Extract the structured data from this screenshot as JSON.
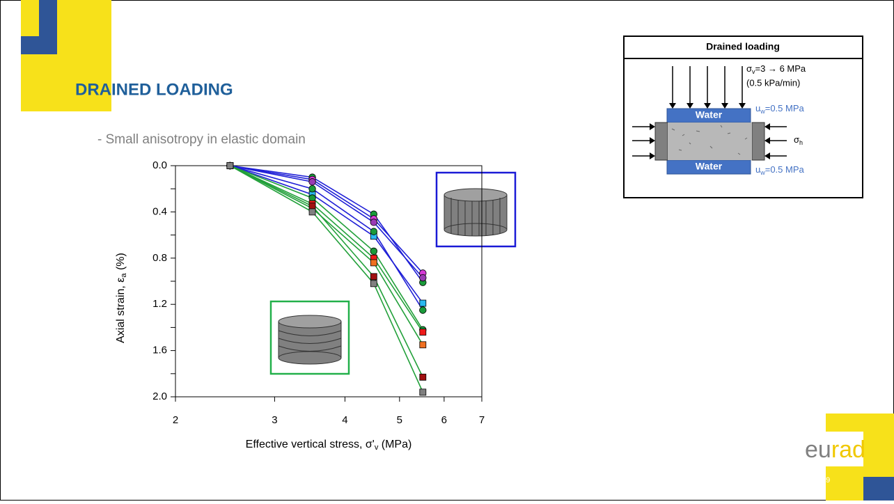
{
  "slide": {
    "title": "DRAINED LOADING",
    "bullet": "- Small anisotropy in elastic domain",
    "page_number": "49",
    "logo": [
      "eu",
      "rad"
    ]
  },
  "diagram": {
    "title": "Drained loading",
    "stress_v": [
      "σ",
      "v",
      "=3 → 6 MPa"
    ],
    "rate": "(0.5 kPa/min)",
    "water_top": "Water",
    "water_bottom": "Water",
    "pore_top": [
      "u",
      "w",
      "=0.5 MPa"
    ],
    "pore_bottom": [
      "u",
      "w",
      "=0.5 MPa"
    ],
    "stress_h": [
      "σ",
      "h"
    ]
  },
  "chart_data": {
    "type": "line",
    "x_label": [
      "Effective vertical stress, σ'",
      "v",
      " (MPa)"
    ],
    "y_label": [
      "Axial strain, ε",
      "a",
      " (%)"
    ],
    "x": [
      2.5,
      3.5,
      4.5,
      5.5
    ],
    "xlim": [
      2,
      7
    ],
    "xticks": [
      2,
      3,
      4,
      5,
      6,
      7
    ],
    "xlog": true,
    "ylim": [
      0,
      2
    ],
    "yinverted": true,
    "yticks": [
      {
        "value": 0,
        "label": "0.0"
      },
      0.4,
      0.8,
      1.2,
      1.6,
      {
        "value": 2,
        "label": "2.0"
      }
    ],
    "yticks_minor": [
      0.2,
      0.6,
      1.0,
      1.4,
      1.8
    ],
    "series": [
      {
        "color": "#1f1fd6",
        "marker": "circle",
        "marker_color": "#1a9a3a",
        "values": [
          0,
          0.1,
          0.42,
          1.01
        ]
      },
      {
        "color": "#1f1fd6",
        "marker": "circle",
        "marker_color": "#d63ad6",
        "values": [
          0,
          0.12,
          0.46,
          0.93
        ]
      },
      {
        "color": "#1f1fd6",
        "marker": "circle",
        "marker_color": "#9a3ab4",
        "values": [
          0,
          0.14,
          0.49,
          0.97
        ]
      },
      {
        "color": "#1f1fd6",
        "marker": "square",
        "marker_color": "#2ab8f0",
        "values": [
          0,
          0.25,
          0.61,
          1.19
        ]
      },
      {
        "color": "#1f1fd6",
        "marker": "circle",
        "marker_color": "#1a9a3a",
        "values": [
          0,
          0.2,
          0.57,
          1.25
        ]
      },
      {
        "color": "#22a03a",
        "marker": "circle",
        "marker_color": "#1a9a3a",
        "values": [
          0,
          0.28,
          0.74,
          1.42
        ]
      },
      {
        "color": "#22a03a",
        "marker": "square",
        "marker_color": "#ee1a1a",
        "values": [
          0,
          0.33,
          0.8,
          1.44
        ]
      },
      {
        "color": "#22a03a",
        "marker": "square",
        "marker_color": "#f07020",
        "values": [
          0,
          0.37,
          0.84,
          1.55
        ]
      },
      {
        "color": "#22a03a",
        "marker": "square",
        "marker_color": "#a01010",
        "values": [
          0,
          0.35,
          0.96,
          1.83
        ]
      },
      {
        "color": "#22a03a",
        "marker": "square",
        "marker_color": "#808080",
        "values": [
          0,
          0.4,
          1.02,
          1.96
        ]
      }
    ]
  }
}
